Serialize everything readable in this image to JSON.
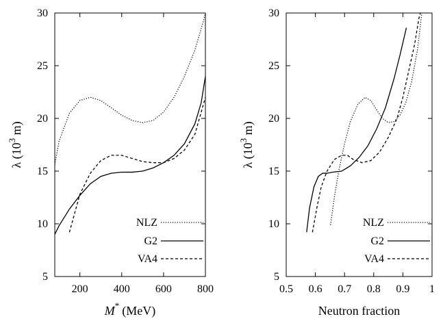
{
  "chart_data": [
    {
      "type": "line",
      "xlabel_main": "M",
      "xlabel_sup": "*",
      "xlabel_unit": "(MeV)",
      "ylabel": "λ (10",
      "ylabel_sup": "3",
      "ylabel_tail": " m)",
      "xlim": [
        80,
        800
      ],
      "ylim": [
        5,
        30
      ],
      "xticks": [
        200,
        400,
        600,
        800
      ],
      "yticks": [
        5,
        10,
        15,
        20,
        25,
        30
      ],
      "grid": false,
      "legend_position": "bottom-right",
      "series": [
        {
          "name": "NLZ",
          "dash": "dotted",
          "points": [
            [
              80,
              15.6
            ],
            [
              100,
              17.8
            ],
            [
              150,
              20.5
            ],
            [
              200,
              21.7
            ],
            [
              250,
              22.0
            ],
            [
              300,
              21.7
            ],
            [
              350,
              21.0
            ],
            [
              400,
              20.3
            ],
            [
              450,
              19.8
            ],
            [
              500,
              19.6
            ],
            [
              550,
              19.8
            ],
            [
              600,
              20.6
            ],
            [
              650,
              22.0
            ],
            [
              700,
              24.0
            ],
            [
              750,
              26.5
            ],
            [
              790,
              29.2
            ],
            [
              800,
              30.0
            ]
          ]
        },
        {
          "name": "G2",
          "dash": "solid",
          "points": [
            [
              80,
              9.0
            ],
            [
              100,
              9.8
            ],
            [
              150,
              11.4
            ],
            [
              200,
              12.7
            ],
            [
              250,
              13.8
            ],
            [
              300,
              14.5
            ],
            [
              350,
              14.8
            ],
            [
              400,
              14.9
            ],
            [
              450,
              14.9
            ],
            [
              500,
              15.0
            ],
            [
              550,
              15.3
            ],
            [
              600,
              15.8
            ],
            [
              650,
              16.5
            ],
            [
              700,
              17.6
            ],
            [
              750,
              19.5
            ],
            [
              780,
              21.5
            ],
            [
              800,
              24.0
            ]
          ]
        },
        {
          "name": "VA4",
          "dash": "dashed",
          "points": [
            [
              150,
              9.2
            ],
            [
              175,
              11.0
            ],
            [
              200,
              12.8
            ],
            [
              250,
              14.8
            ],
            [
              300,
              16.0
            ],
            [
              350,
              16.5
            ],
            [
              400,
              16.5
            ],
            [
              450,
              16.2
            ],
            [
              500,
              15.9
            ],
            [
              550,
              15.8
            ],
            [
              600,
              15.8
            ],
            [
              650,
              16.2
            ],
            [
              700,
              17.0
            ],
            [
              750,
              18.5
            ],
            [
              800,
              22.0
            ]
          ]
        }
      ]
    },
    {
      "type": "line",
      "xlabel": "Neutron fraction",
      "ylabel": "λ (10",
      "ylabel_sup": "3",
      "ylabel_tail": " m)",
      "xlim": [
        0.5,
        1.0
      ],
      "ylim": [
        5,
        30
      ],
      "xticks": [
        0.5,
        0.6,
        0.7,
        0.8,
        0.9,
        1.0
      ],
      "xtick_labels": [
        "0.5",
        "0.6",
        "0.7",
        "0.8",
        "0.9",
        "1"
      ],
      "yticks": [
        5,
        10,
        15,
        20,
        25,
        30
      ],
      "grid": false,
      "legend_position": "bottom-right",
      "series": [
        {
          "name": "NLZ",
          "dash": "dotted",
          "points": [
            [
              0.652,
              9.9
            ],
            [
              0.665,
              12.5
            ],
            [
              0.68,
              15.0
            ],
            [
              0.7,
              17.6
            ],
            [
              0.72,
              19.7
            ],
            [
              0.745,
              21.3
            ],
            [
              0.77,
              22.0
            ],
            [
              0.79,
              21.7
            ],
            [
              0.81,
              20.8
            ],
            [
              0.83,
              20.0
            ],
            [
              0.85,
              19.6
            ],
            [
              0.87,
              19.7
            ],
            [
              0.89,
              20.3
            ],
            [
              0.91,
              21.5
            ],
            [
              0.93,
              23.5
            ],
            [
              0.95,
              26.5
            ],
            [
              0.965,
              30.0
            ]
          ]
        },
        {
          "name": "G2",
          "dash": "solid",
          "points": [
            [
              0.57,
              9.2
            ],
            [
              0.58,
              11.5
            ],
            [
              0.595,
              13.5
            ],
            [
              0.61,
              14.5
            ],
            [
              0.625,
              14.8
            ],
            [
              0.64,
              14.8
            ],
            [
              0.66,
              14.9
            ],
            [
              0.69,
              15.0
            ],
            [
              0.72,
              15.5
            ],
            [
              0.75,
              16.3
            ],
            [
              0.78,
              17.4
            ],
            [
              0.81,
              19.0
            ],
            [
              0.84,
              21.0
            ],
            [
              0.87,
              23.8
            ],
            [
              0.89,
              26.0
            ],
            [
              0.912,
              28.6
            ]
          ]
        },
        {
          "name": "VA4",
          "dash": "dashed",
          "points": [
            [
              0.59,
              9.2
            ],
            [
              0.605,
              11.5
            ],
            [
              0.62,
              13.5
            ],
            [
              0.64,
              15.0
            ],
            [
              0.665,
              16.1
            ],
            [
              0.69,
              16.5
            ],
            [
              0.71,
              16.5
            ],
            [
              0.73,
              16.1
            ],
            [
              0.76,
              15.8
            ],
            [
              0.79,
              16.0
            ],
            [
              0.82,
              16.8
            ],
            [
              0.85,
              18.2
            ],
            [
              0.88,
              20.0
            ],
            [
              0.9,
              22.0
            ],
            [
              0.92,
              24.5
            ],
            [
              0.94,
              27.0
            ],
            [
              0.955,
              29.5
            ],
            [
              0.96,
              30.0
            ]
          ]
        }
      ]
    }
  ]
}
